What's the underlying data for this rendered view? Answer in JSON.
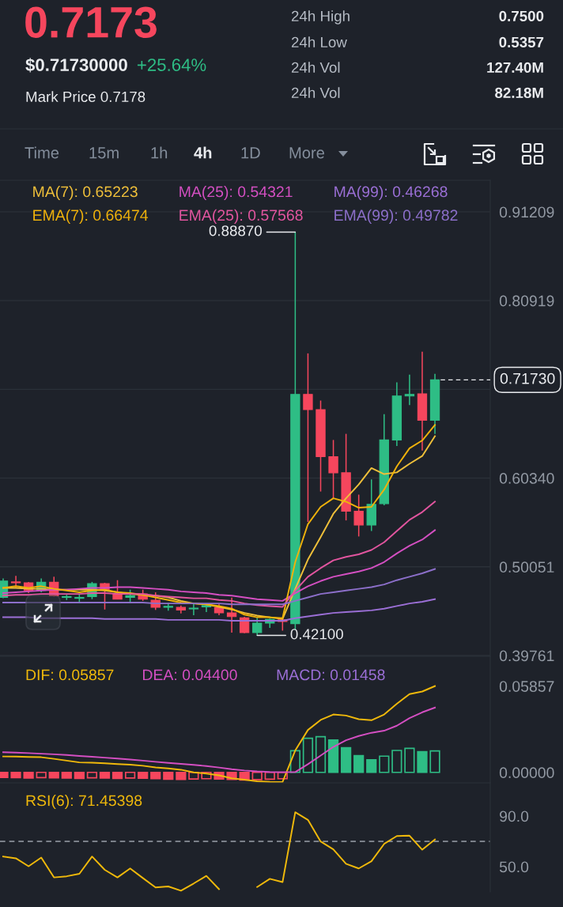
{
  "chart_data": [
    {
      "type": "other",
      "title": "0.7173",
      "annotations": [
        "$0.71730000",
        "+25.64%",
        "Mark Price 0.7178",
        "24h High",
        "0.7500",
        "24h Low",
        "0.5357",
        "24h Vol",
        "127.40M",
        "24h Vol",
        "82.18M",
        "Time",
        "15m",
        "1h",
        "4h",
        "1D",
        "More"
      ]
    },
    {
      "type": "candlestick",
      "categories": [
        null,
        null,
        null,
        null,
        null,
        null,
        null,
        null,
        null,
        null,
        null,
        null,
        null,
        null,
        null,
        null,
        null,
        null,
        null,
        null,
        null,
        null,
        null,
        null,
        null,
        null,
        null,
        null,
        null,
        null,
        null,
        null,
        null,
        null,
        null
      ],
      "ohlc": [
        [
          0.465,
          0.487,
          0.464,
          0.484
        ],
        [
          0.483,
          0.49,
          0.477,
          0.482
        ],
        [
          0.482,
          0.483,
          0.47,
          0.473
        ],
        [
          0.473,
          0.487,
          0.471,
          0.4825
        ],
        [
          0.4825,
          0.489,
          0.466,
          0.467
        ],
        [
          0.465,
          0.468,
          0.462,
          0.466
        ],
        [
          0.464,
          0.469,
          0.459,
          0.465
        ],
        [
          0.466,
          0.483,
          0.463,
          0.481
        ],
        [
          0.481,
          0.482,
          0.451,
          0.474
        ],
        [
          0.469,
          0.485,
          0.463,
          0.463
        ],
        [
          0.465,
          0.474,
          0.459,
          0.467
        ],
        [
          0.469,
          0.474,
          0.461,
          0.463
        ],
        [
          0.4617,
          0.4709,
          0.4505,
          0.4535
        ],
        [
          0.4535,
          0.4587,
          0.4496,
          0.4547
        ],
        [
          0.4535,
          0.4556,
          0.4464,
          0.4505
        ],
        [
          0.4517,
          0.4572,
          0.4444,
          0.4526
        ],
        [
          0.454,
          0.4572,
          0.448,
          0.4556
        ],
        [
          0.4532,
          0.4572,
          0.4444,
          0.4471
        ],
        [
          0.4471,
          0.4647,
          0.4242,
          0.4428
        ],
        [
          0.4413,
          0.4425,
          0.4235,
          0.4242
        ],
        [
          0.4242,
          0.4413,
          0.421,
          0.4352
        ],
        [
          0.4352,
          0.4404,
          0.4297,
          0.4395
        ],
        [
          0.439,
          0.44,
          0.4265,
          0.437
        ],
        [
          0.4346,
          0.8887,
          0.4276,
          0.7005
        ],
        [
          0.7005,
          0.748,
          0.5525,
          0.6828
        ],
        [
          0.6828,
          0.6933,
          0.5878,
          0.6282
        ],
        [
          0.6282,
          0.6476,
          0.579,
          0.6095
        ],
        [
          0.6095,
          0.6547,
          0.5543,
          0.5649
        ],
        [
          0.5649,
          0.5842,
          0.5357,
          0.549
        ],
        [
          0.549,
          0.6019,
          0.542,
          0.5729
        ],
        [
          0.5737,
          0.6776,
          0.5719,
          0.6476
        ],
        [
          0.6476,
          0.7145,
          0.6406,
          0.6986
        ],
        [
          0.6986,
          0.7233,
          0.6881,
          0.7005
        ],
        [
          0.7011,
          0.75,
          0.6353,
          0.6705
        ],
        [
          0.6705,
          0.7243,
          0.6547,
          0.7173
        ]
      ],
      "colors": [
        "#2ebd85",
        "#f6465d",
        "#f6465d",
        "#2ebd85",
        "#f6465d",
        "#2ebd85",
        "#2ebd85",
        "#2ebd85",
        "#f6465d",
        "#f6465d",
        "#2ebd85",
        "#f6465d",
        "#f6465d",
        "#2ebd85",
        "#f6465d",
        "#2ebd85",
        "#2ebd85",
        "#f6465d",
        "#f6465d",
        "#f6465d",
        "#2ebd85",
        "#2ebd85",
        "#f6465d",
        "#2ebd85",
        "#f6465d",
        "#f6465d",
        "#f6465d",
        "#f6465d",
        "#f6465d",
        "#2ebd85",
        "#2ebd85",
        "#2ebd85",
        "#2ebd85",
        "#f6465d",
        "#2ebd85"
      ],
      "series": [
        {
          "name": "MA(7): 0.65223",
          "type": "line",
          "color": "#f0c03a",
          "values": [
            0.476,
            0.476,
            0.475,
            0.475,
            0.474,
            0.474,
            0.474,
            0.474,
            0.473,
            0.471,
            0.469,
            0.468,
            0.467,
            0.465,
            0.461,
            0.458,
            0.457,
            0.454,
            0.451,
            0.447,
            0.444,
            0.442,
            0.44,
            0.475,
            0.509,
            0.535,
            0.562,
            0.58,
            0.596,
            0.615,
            0.608,
            0.61,
            0.62,
            0.629,
            0.652
          ]
        },
        {
          "name": "MA(25): 0.54321",
          "type": "line",
          "color": "#d44fc2",
          "values": [
            0.47,
            0.471,
            0.472,
            0.473,
            0.474,
            0.474,
            0.475,
            0.476,
            0.476,
            0.477,
            0.477,
            0.476,
            0.475,
            0.474,
            0.472,
            0.471,
            0.47,
            0.468,
            0.467,
            0.465,
            0.463,
            0.462,
            0.461,
            0.47,
            0.478,
            0.484,
            0.489,
            0.492,
            0.495,
            0.499,
            0.506,
            0.516,
            0.525,
            0.532,
            0.543
          ]
        },
        {
          "name": "MA(99): 0.46268",
          "type": "line",
          "color": "#9b6fd6",
          "values": [
            0.442,
            0.442,
            0.442,
            0.441,
            0.441,
            0.441,
            0.441,
            0.441,
            0.44,
            0.44,
            0.44,
            0.44,
            0.44,
            0.439,
            0.439,
            0.439,
            0.439,
            0.439,
            0.438,
            0.438,
            0.438,
            0.438,
            0.438,
            0.441,
            0.443,
            0.445,
            0.447,
            0.448,
            0.449,
            0.45,
            0.452,
            0.455,
            0.458,
            0.46,
            0.463
          ]
        },
        {
          "name": "EMA(7): 0.66474",
          "type": "line",
          "color": "#f0b20b",
          "values": [
            0.476,
            0.478,
            0.476,
            0.478,
            0.475,
            0.473,
            0.471,
            0.473,
            0.474,
            0.471,
            0.47,
            0.468,
            0.465,
            0.462,
            0.459,
            0.458,
            0.457,
            0.455,
            0.452,
            0.445,
            0.442,
            0.442,
            0.441,
            0.506,
            0.55,
            0.57,
            0.58,
            0.576,
            0.569,
            0.57,
            0.59,
            0.617,
            0.638,
            0.647,
            0.665
          ]
        },
        {
          "name": "EMA(25): 0.57568",
          "type": "line",
          "color": "#e2559f",
          "values": [
            0.467,
            0.468,
            0.468,
            0.469,
            0.469,
            0.469,
            0.469,
            0.47,
            0.47,
            0.469,
            0.469,
            0.469,
            0.467,
            0.466,
            0.465,
            0.464,
            0.464,
            0.462,
            0.461,
            0.458,
            0.456,
            0.455,
            0.454,
            0.473,
            0.489,
            0.499,
            0.508,
            0.512,
            0.515,
            0.52,
            0.529,
            0.542,
            0.555,
            0.564,
            0.576
          ]
        },
        {
          "name": "EMA(99): 0.49782",
          "type": "line",
          "color": "#8c6fca",
          "values": [
            0.459,
            0.459,
            0.459,
            0.459,
            0.459,
            0.459,
            0.459,
            0.459,
            0.459,
            0.459,
            0.459,
            0.459,
            0.458,
            0.458,
            0.458,
            0.458,
            0.458,
            0.458,
            0.457,
            0.457,
            0.457,
            0.457,
            0.457,
            0.461,
            0.465,
            0.469,
            0.471,
            0.473,
            0.475,
            0.477,
            0.48,
            0.485,
            0.489,
            0.493,
            0.498
          ]
        }
      ],
      "ylim": [
        0.3967,
        0.9487
      ],
      "yticks": [
        {
          "value": 0.91209,
          "label": "0.91209"
        },
        {
          "value": 0.80919,
          "label": "0.80919"
        },
        {
          "value": 0.7063,
          "label": null
        },
        {
          "value": 0.6034,
          "label": "0.60340"
        },
        {
          "value": 0.50051,
          "label": "0.50051"
        },
        {
          "value": 0.39761,
          "label": "0.39761"
        }
      ],
      "grid": "y",
      "legend": "top",
      "ref_lines": [
        {
          "axis": "y",
          "value": 0.7173,
          "label": "0.71730",
          "line_style": "dashed",
          "color": "#eaecef"
        }
      ],
      "annotations": [
        "0.88870",
        "0.42100"
      ]
    },
    {
      "type": "bar",
      "categories": [
        null,
        null,
        null,
        null,
        null,
        null,
        null,
        null,
        null,
        null,
        null,
        null,
        null,
        null,
        null,
        null,
        null,
        null,
        null,
        null,
        null,
        null,
        null,
        null,
        null,
        null,
        null,
        null,
        null,
        null,
        null,
        null,
        null,
        null,
        null
      ],
      "series": [
        {
          "name": "DIF: 0.05857",
          "type": "line",
          "color": "#f0b90b",
          "values": [
            0.0108,
            0.0107,
            0.0105,
            0.0103,
            0.0092,
            0.008,
            0.0068,
            0.0066,
            0.0062,
            0.0057,
            0.0052,
            0.0045,
            0.0034,
            0.0027,
            0.0018,
            0.0,
            -0.0008,
            -0.002,
            -0.004,
            -0.005,
            -0.006,
            -0.0064,
            -0.0065,
            0.0149,
            0.0288,
            0.0356,
            0.0393,
            0.0386,
            0.0361,
            0.0354,
            0.0393,
            0.0466,
            0.0532,
            0.0549,
            0.0586
          ]
        },
        {
          "name": "DEA: 0.04400",
          "type": "line",
          "color": "#d44fc2",
          "values": [
            0.0137,
            0.0134,
            0.0131,
            0.0127,
            0.0123,
            0.0118,
            0.0112,
            0.0106,
            0.01,
            0.0094,
            0.0087,
            0.008,
            0.0072,
            0.0065,
            0.0058,
            0.0051,
            0.0043,
            0.0033,
            0.0022,
            0.0013,
            0.0007,
            0.0003,
            0.0001,
            0.0002,
            0.0056,
            0.0114,
            0.0173,
            0.0218,
            0.0247,
            0.0269,
            0.0283,
            0.0317,
            0.0369,
            0.0408,
            0.044
          ]
        },
        {
          "colors": [
            "#f6465d",
            "#f6465d",
            "#f6465d",
            "#f6465d",
            "#f6465d",
            "#f6465d",
            "#f6465d",
            "#f6465d",
            "#f6465d",
            "#f6465d",
            "#f6465d",
            "#f6465d",
            "#f6465d",
            "#f6465d",
            "#f6465d",
            "#f6465d",
            "#f6465d",
            "#f6465d",
            "#f6465d",
            "#f6465d",
            "#f6465d",
            "#f6465d",
            "#f6465d",
            "#2ebd85",
            "#2ebd85",
            "#2ebd85",
            "#2ebd85",
            "#2ebd85",
            "#2ebd85",
            "#2ebd85",
            "#2ebd85",
            "#2ebd85",
            "#2ebd85",
            "#2ebd85",
            "#2ebd85"
          ],
          "values": [
            -0.0034,
            -0.0036,
            -0.0038,
            -0.0035,
            -0.0037,
            -0.0039,
            -0.0041,
            -0.0037,
            -0.0039,
            -0.0041,
            -0.0038,
            -0.004,
            -0.0043,
            -0.0046,
            -0.0048,
            -0.0045,
            -0.0043,
            -0.0045,
            -0.0048,
            -0.0052,
            -0.0049,
            -0.0046,
            -0.0043,
            0.0147,
            0.0232,
            0.0242,
            0.022,
            0.0168,
            0.0114,
            0.0085,
            0.011,
            0.0149,
            0.0163,
            0.0141,
            0.0146
          ]
        }
      ],
      "ylim": [
        -0.0071,
        0.0788
      ],
      "yticks": [
        {
          "value": 0.05857,
          "label": "0.05857"
        },
        {
          "value": 0,
          "label": "0.00000"
        }
      ],
      "legend": "top left",
      "annotations": [
        "MACD: 0.01458"
      ]
    },
    {
      "type": "line",
      "categories": [
        null,
        null,
        null,
        null,
        null,
        null,
        null,
        null,
        null,
        null,
        null,
        null,
        null,
        null,
        null,
        null,
        null,
        null,
        null,
        null,
        null,
        null,
        null,
        null,
        null,
        null,
        null,
        null,
        null,
        null,
        null,
        null,
        null,
        null,
        null
      ],
      "series": [
        {
          "name": "RSI(6): 71.45398",
          "color": "#f0b90b",
          "values": [
            58.0,
            56.6,
            50.3,
            57.2,
            41.5,
            42.4,
            44.4,
            58.0,
            47.5,
            41.5,
            48.6,
            41.0,
            33.6,
            34.4,
            31.0,
            36.7,
            42.7,
            32.2,
            null,
            null,
            33.9,
            40.4,
            37.8,
            93.0,
            87.0,
            69.9,
            63.7,
            52.3,
            48.6,
            54.3,
            68.0,
            74.2,
            74.5,
            63.4,
            71.5
          ]
        }
      ],
      "ylim": [
        30,
        116.25
      ],
      "yticks": [
        {
          "value": 90,
          "label": "90.0"
        },
        {
          "value": 50,
          "label": "50.0"
        }
      ],
      "legend": "top left",
      "ref_lines": [
        {
          "axis": "y",
          "value": 70,
          "line_style": "dashed",
          "color": "#9ba1ab"
        }
      ]
    }
  ]
}
